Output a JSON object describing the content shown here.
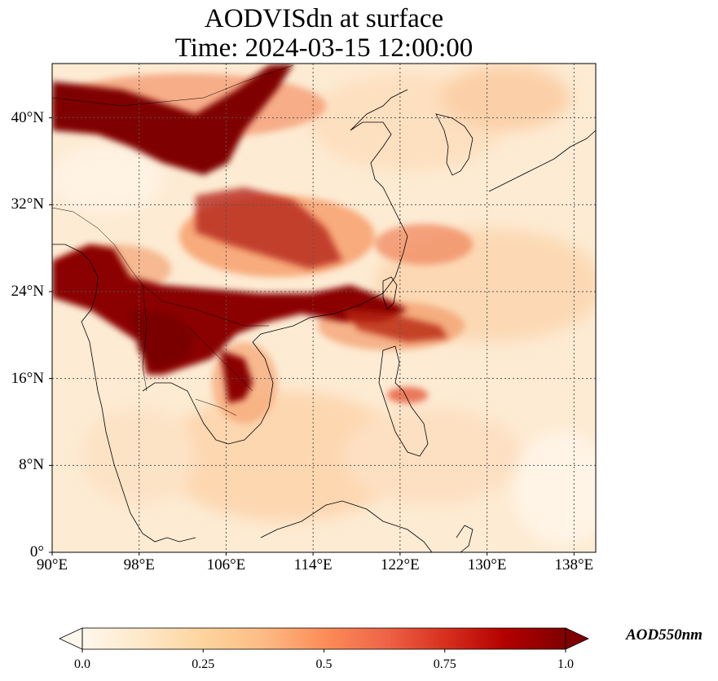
{
  "title": {
    "line1": "AODVISdn at surface",
    "line2": "Time: 2024-03-15 12:00:00"
  },
  "map": {
    "projection": "PlateCarree",
    "lon_range": [
      90,
      140
    ],
    "lat_range": [
      0,
      45
    ],
    "gridlines": "dotted",
    "coastlines": true,
    "borders": true,
    "colormap": "OrRd",
    "x_ticks": [
      "90°E",
      "98°E",
      "106°E",
      "114°E",
      "122°E",
      "130°E",
      "138°E"
    ],
    "y_ticks": [
      "0°",
      "8°N",
      "16°N",
      "24°N",
      "32°N",
      "40°N"
    ],
    "high_aod_regions": [
      "northern China / Gobi plume",
      "Sichuan Basin",
      "South China / Guangdong",
      "northern Indochina (Myanmar, Laos, Thailand, Vietnam)"
    ]
  },
  "colorbar": {
    "label": "AOD550nm",
    "ticks": [
      "0.0",
      "0.25",
      "0.5",
      "0.75",
      "1.0"
    ],
    "range": [
      0.0,
      1.0
    ],
    "extend": "both",
    "colors": [
      "#fff7ec",
      "#fee8c8",
      "#fdd49e",
      "#fdbb84",
      "#fc8d59",
      "#ef6548",
      "#d7301f",
      "#b30000",
      "#7f0000"
    ]
  }
}
